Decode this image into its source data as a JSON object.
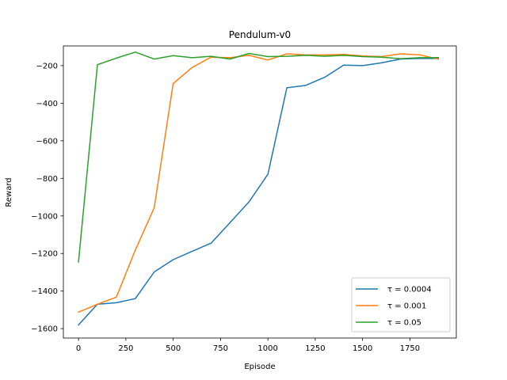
{
  "chart_data": {
    "type": "line",
    "title": "Pendulum-v0",
    "xlabel": "Episode",
    "ylabel": "Reward",
    "xlim": [
      -80,
      1995
    ],
    "ylim": [
      -1650,
      -95
    ],
    "xticks": [
      0,
      250,
      500,
      750,
      1000,
      1250,
      1500,
      1750
    ],
    "yticks": [
      -1600,
      -1400,
      -1200,
      -1000,
      -800,
      -600,
      -400,
      -200
    ],
    "xtick_labels": [
      "0",
      "250",
      "500",
      "750",
      "1000",
      "1250",
      "1500",
      "1750"
    ],
    "ytick_labels": [
      "−1600",
      "−1400",
      "−1200",
      "−1000",
      "−800",
      "−600",
      "−400",
      "−200"
    ],
    "grid": false,
    "legend_position": "lower-right",
    "x": [
      0,
      100,
      200,
      300,
      400,
      500,
      600,
      700,
      800,
      900,
      1000,
      1100,
      1200,
      1300,
      1400,
      1500,
      1600,
      1700,
      1800,
      1900
    ],
    "series": [
      {
        "name": "τ = 0.0004",
        "color": "#1f77b4",
        "values": [
          -1580,
          -1470,
          -1462,
          -1440,
          -1298,
          -1233,
          -1188,
          -1145,
          -1035,
          -925,
          -778,
          -318,
          -305,
          -262,
          -197,
          -200,
          -185,
          -165,
          -162,
          -162
        ]
      },
      {
        "name": "τ = 0.001",
        "color": "#ff7f0e",
        "values": [
          -1512,
          -1470,
          -1432,
          -1182,
          -956,
          -295,
          -210,
          -155,
          -158,
          -145,
          -170,
          -137,
          -143,
          -143,
          -140,
          -148,
          -152,
          -137,
          -142,
          -165
        ]
      },
      {
        "name": "τ = 0.05",
        "color": "#2ca02c",
        "values": [
          -1245,
          -195,
          -160,
          -128,
          -165,
          -147,
          -158,
          -150,
          -165,
          -135,
          -152,
          -150,
          -145,
          -150,
          -145,
          -152,
          -155,
          -163,
          -158,
          -157
        ]
      }
    ]
  }
}
